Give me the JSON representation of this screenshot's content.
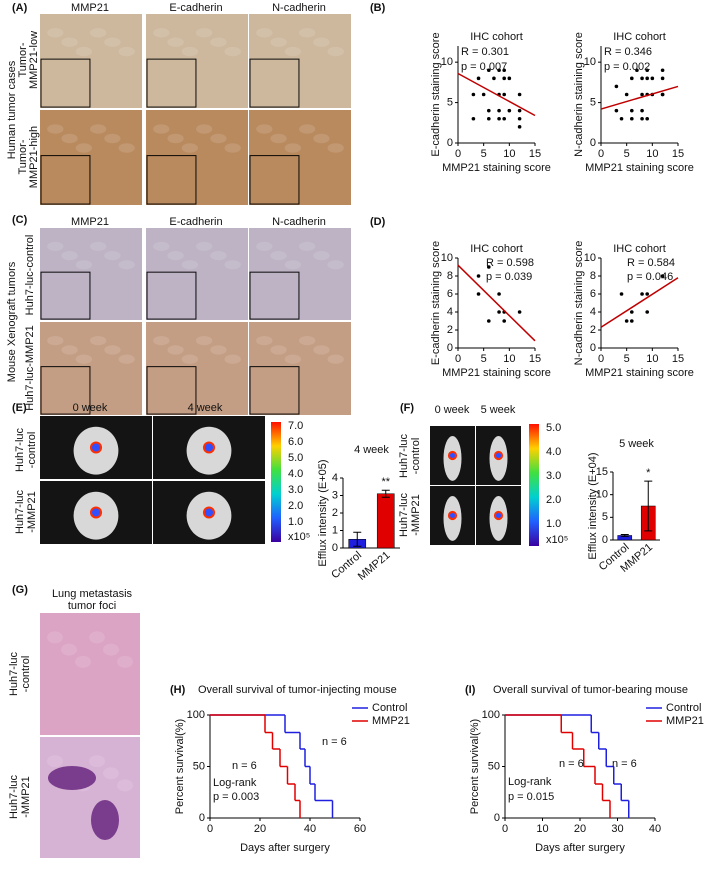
{
  "figure": {
    "A": {
      "label": "(A)",
      "columns": [
        "MMP21",
        "E-cadherin",
        "N-cadherin"
      ],
      "group": "Human tumor cases",
      "rows": [
        [
          "Tumor-",
          "MMP21-low"
        ],
        [
          "Tumor-",
          "MMP21-high"
        ]
      ]
    },
    "B": {
      "label": "(B)"
    },
    "C": {
      "label": "(C)",
      "columns": [
        "MMP21",
        "E-cadherin",
        "N-cadherin"
      ],
      "group": "Mouse Xenograft tumors",
      "rows": [
        "Huh7-luc-control",
        "Huh7-luc-MMP21"
      ]
    },
    "D": {
      "label": "(D)"
    },
    "E": {
      "label": "(E)",
      "columns": [
        "0 week",
        "4 week"
      ],
      "rows": [
        [
          "Huh7-luc",
          "-control"
        ],
        [
          "Huh7-luc",
          "-MMP21"
        ]
      ],
      "colorbar": {
        "ticks": [
          "7.0",
          "6.0",
          "5.0",
          "4.0",
          "3.0",
          "2.0",
          "1.0"
        ],
        "unit": "x10⁵"
      }
    },
    "F": {
      "label": "(F)",
      "columns": [
        "0 week",
        "5 week"
      ],
      "rows": [
        [
          "Huh7-luc",
          "-control"
        ],
        [
          "Huh7-luc",
          "-MMP21"
        ]
      ],
      "colorbar": {
        "ticks": [
          "5.0",
          "4.0",
          "3.0",
          "2.0",
          "1.0"
        ],
        "unit": "x10⁵"
      }
    },
    "G": {
      "label": "(G)",
      "title": [
        "Lung metastasis",
        "tumor foci"
      ],
      "rows": [
        [
          "Huh7-luc",
          "-control"
        ],
        [
          "Huh7-luc",
          "-MMP21"
        ]
      ]
    },
    "H": {
      "label": "(H)"
    },
    "I": {
      "label": "(I)"
    }
  },
  "chart_data": [
    {
      "type": "scatter",
      "title": "IHC cohort",
      "xlabel": "MMP21 staining score",
      "ylabel": "E-cadherin staining score",
      "x": [
        3,
        3,
        4,
        5,
        6,
        6,
        6,
        7,
        8,
        8,
        8,
        8,
        9,
        9,
        9,
        9,
        10,
        10,
        12,
        12,
        12,
        12
      ],
      "values": [
        6,
        3,
        8,
        6,
        3,
        9,
        4,
        8,
        9,
        6,
        4,
        3,
        9,
        8,
        6,
        3,
        8,
        4,
        6,
        4,
        2,
        3
      ],
      "color": "#000000",
      "xlim": [
        0,
        15
      ],
      "xticks": [
        0,
        5,
        10,
        15
      ],
      "ylim": [
        0,
        12
      ],
      "yticks": [
        0,
        5,
        10
      ],
      "trendline": {
        "x": [
          0,
          15
        ],
        "values": [
          8.6,
          3.4
        ],
        "color": "#c00000"
      },
      "annotations": [
        "R = 0.301",
        "p = 0.007"
      ]
    },
    {
      "type": "scatter",
      "title": "IHC cohort",
      "xlabel": "MMP21 staining score",
      "ylabel": "N-cadherin staining score",
      "x": [
        3,
        3,
        4,
        5,
        6,
        6,
        6,
        7,
        8,
        8,
        8,
        8,
        9,
        9,
        9,
        9,
        10,
        10,
        12,
        12,
        12,
        12
      ],
      "values": [
        7,
        4,
        3,
        6,
        3,
        4,
        8,
        9,
        8,
        6,
        4,
        3,
        9,
        8,
        6,
        3,
        8,
        6,
        9,
        8,
        6,
        6
      ],
      "color": "#000000",
      "xlim": [
        0,
        15
      ],
      "xticks": [
        0,
        5,
        10,
        15
      ],
      "ylim": [
        0,
        12
      ],
      "yticks": [
        0,
        5,
        10
      ],
      "trendline": {
        "x": [
          0,
          15
        ],
        "values": [
          4.2,
          7.0
        ],
        "color": "#c00000"
      },
      "annotations": [
        "R = 0.346",
        "p = 0.002"
      ]
    },
    {
      "type": "scatter",
      "title": "IHC cohort",
      "xlabel": "MMP21 staining score",
      "ylabel": "E-cadherin staining score",
      "x": [
        4,
        6,
        4,
        6,
        8,
        8,
        9,
        9,
        12
      ],
      "values": [
        8,
        9,
        6,
        3,
        6,
        4,
        4,
        3,
        4
      ],
      "color": "#000000",
      "xlim": [
        0,
        15
      ],
      "xticks": [
        0,
        5,
        10,
        15
      ],
      "ylim": [
        0,
        10
      ],
      "yticks": [
        0,
        2,
        4,
        6,
        8,
        10
      ],
      "trendline": {
        "x": [
          0,
          15
        ],
        "values": [
          9.2,
          0.8
        ],
        "color": "#c00000"
      },
      "annotations": [
        "R = 0.598",
        "p = 0.039"
      ]
    },
    {
      "type": "scatter",
      "title": "IHC cohort",
      "xlabel": "MMP21 staining score",
      "ylabel": "N-cadherin staining score",
      "x": [
        4,
        5,
        6,
        6,
        8,
        9,
        9,
        12
      ],
      "values": [
        6,
        3,
        4,
        3,
        6,
        6,
        4,
        8
      ],
      "color": "#000000",
      "xlim": [
        0,
        15
      ],
      "xticks": [
        0,
        5,
        10,
        15
      ],
      "ylim": [
        0,
        10
      ],
      "yticks": [
        0,
        2,
        4,
        6,
        8,
        10
      ],
      "trendline": {
        "x": [
          0,
          15
        ],
        "values": [
          2.3,
          7.8
        ],
        "color": "#c00000"
      },
      "annotations": [
        "R = 0.584",
        "p = 0.046"
      ]
    },
    {
      "type": "bar",
      "title": "4 week",
      "ylabel": "Efflux intensity (E+05)",
      "categories": [
        "Control",
        "MMP21"
      ],
      "values": [
        0.5,
        3.1
      ],
      "errors": [
        0.4,
        0.2
      ],
      "colors": [
        "#1f1fe0",
        "#e00000"
      ],
      "ylim": [
        0,
        4
      ],
      "yticks": [
        0,
        1,
        2,
        3,
        4
      ],
      "annotations": [
        "**"
      ]
    },
    {
      "type": "bar",
      "title": "5 week",
      "ylabel": "Efflux intensity (E+04)",
      "categories": [
        "Control",
        "MMP21"
      ],
      "values": [
        1.0,
        7.5
      ],
      "errors": [
        0.2,
        5.5
      ],
      "colors": [
        "#1f1fe0",
        "#e00000"
      ],
      "ylim": [
        0,
        15
      ],
      "yticks": [
        0,
        5,
        10,
        15
      ],
      "annotations": [
        "*"
      ]
    },
    {
      "type": "line",
      "step": true,
      "title": "Overall survival of tumor-injecting mouse",
      "xlabel": "Days after surgery",
      "ylabel": "Percent survival(%)",
      "series": [
        {
          "name": "Control",
          "color": "#1f1fe0",
          "x": [
            0,
            30,
            36,
            38,
            40,
            42,
            49
          ],
          "values": [
            100,
            83,
            67,
            50,
            33,
            17,
            0
          ]
        },
        {
          "name": "MMP21",
          "color": "#e00000",
          "x": [
            0,
            22,
            25,
            28,
            31,
            34,
            36
          ],
          "values": [
            100,
            83,
            67,
            50,
            33,
            17,
            0
          ]
        }
      ],
      "xlim": [
        0,
        60
      ],
      "xticks": [
        0,
        20,
        40,
        60
      ],
      "ylim": [
        0,
        100
      ],
      "yticks": [
        0,
        50,
        100
      ],
      "annotations": [
        "n = 6",
        "n = 6",
        "Log-rank",
        "p = 0.003"
      ]
    },
    {
      "type": "line",
      "step": true,
      "title": "Overall survival of tumor-bearing mouse",
      "xlabel": "Days after surgery",
      "ylabel": "Percent survival(%)",
      "series": [
        {
          "name": "Control",
          "color": "#1f1fe0",
          "x": [
            0,
            23,
            25,
            27,
            29,
            31,
            33
          ],
          "values": [
            100,
            83,
            67,
            50,
            33,
            17,
            0
          ]
        },
        {
          "name": "MMP21",
          "color": "#e00000",
          "x": [
            0,
            15,
            18,
            21,
            24,
            26,
            28
          ],
          "values": [
            100,
            83,
            67,
            50,
            33,
            17,
            0
          ]
        }
      ],
      "xlim": [
        0,
        40
      ],
      "xticks": [
        0,
        10,
        20,
        30,
        40
      ],
      "ylim": [
        0,
        100
      ],
      "yticks": [
        0,
        50,
        100
      ],
      "annotations": [
        "n = 6",
        "n = 6",
        "Log-rank",
        "p = 0.015"
      ]
    }
  ]
}
